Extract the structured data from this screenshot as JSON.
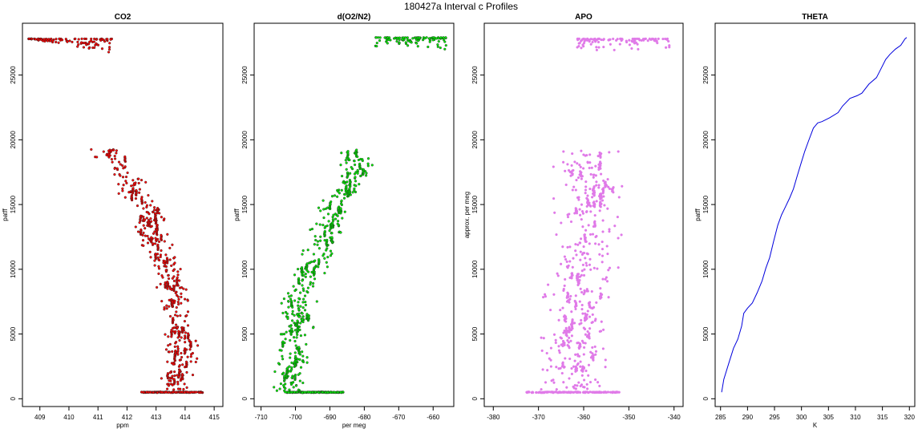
{
  "figure_title": "180427a   Interval c Profiles",
  "chart_data": [
    {
      "type": "scatter",
      "title": "CO2",
      "xlabel": "ppm",
      "ylabel": "patff",
      "xlim": [
        408.4,
        415.3
      ],
      "ylim": [
        -600,
        29000
      ],
      "xticks": [
        409,
        410,
        411,
        412,
        413,
        414,
        415
      ],
      "yticks": [
        0,
        5000,
        10000,
        15000,
        20000,
        25000
      ],
      "color": "#ff0000",
      "profile": [
        [
          409.2,
          27800
        ],
        [
          410.6,
          27700
        ],
        [
          411.0,
          27200
        ],
        [
          411.4,
          26900
        ],
        [
          411.2,
          19300
        ],
        [
          411.7,
          18100
        ],
        [
          412.1,
          16800
        ],
        [
          412.3,
          15400
        ],
        [
          412.9,
          14600
        ],
        [
          412.7,
          12900
        ],
        [
          413.2,
          11100
        ],
        [
          413.4,
          9800
        ],
        [
          413.6,
          8400
        ],
        [
          413.7,
          6600
        ],
        [
          413.8,
          4900
        ],
        [
          413.9,
          3300
        ],
        [
          413.7,
          1700
        ],
        [
          413.8,
          500
        ]
      ],
      "spread": 0.35,
      "bottom_band": [
        412.5,
        414.6,
        500
      ],
      "top_band": [
        408.6,
        411.5,
        27800
      ]
    },
    {
      "type": "scatter",
      "title": "d(O2/N2)",
      "xlabel": "per meg",
      "ylabel": "patff",
      "xlim": [
        -712,
        -654
      ],
      "ylim": [
        -600,
        29000
      ],
      "xticks": [
        -710,
        -700,
        -690,
        -680,
        -670,
        -660
      ],
      "yticks": [
        0,
        5000,
        10000,
        15000,
        20000,
        25000
      ],
      "color": "#00ee00",
      "profile": [
        [
          -665,
          27900
        ],
        [
          -670,
          27300
        ],
        [
          -671,
          26800
        ],
        [
          -683,
          19200
        ],
        [
          -681,
          18100
        ],
        [
          -684,
          16800
        ],
        [
          -686,
          15800
        ],
        [
          -689,
          14600
        ],
        [
          -690,
          12900
        ],
        [
          -692,
          11600
        ],
        [
          -695,
          10200
        ],
        [
          -697,
          8700
        ],
        [
          -700,
          7200
        ],
        [
          -699,
          5600
        ],
        [
          -702,
          4300
        ],
        [
          -699,
          3100
        ],
        [
          -702,
          1800
        ],
        [
          -703,
          500
        ]
      ],
      "spread": 3.2,
      "bottom_band": [
        -703,
        -686,
        500
      ],
      "top_band": [
        -677,
        -656,
        27900
      ]
    },
    {
      "type": "scatter",
      "title": "APO",
      "xlabel": "",
      "ylabel": "approx. per meg",
      "xlim": [
        -382,
        -338
      ],
      "ylim": [
        -600,
        29000
      ],
      "xticks": [
        -380,
        -370,
        -360,
        -350,
        -340
      ],
      "yticks": [
        0,
        5000,
        10000,
        15000,
        20000,
        25000
      ],
      "color": "#e07ae8",
      "profile": [
        [
          -353,
          27800
        ],
        [
          -353,
          27100
        ],
        [
          -360,
          19200
        ],
        [
          -359,
          17500
        ],
        [
          -358,
          15600
        ],
        [
          -359,
          14000
        ],
        [
          -359,
          12300
        ],
        [
          -360,
          10800
        ],
        [
          -360,
          9200
        ],
        [
          -361,
          7600
        ],
        [
          -361,
          6000
        ],
        [
          -362,
          4500
        ],
        [
          -362,
          3000
        ],
        [
          -363,
          1500
        ],
        [
          -362,
          500
        ]
      ],
      "spread": 5.0,
      "bottom_band": [
        -373,
        -352,
        500
      ],
      "top_band": [
        -362,
        -341,
        27800
      ]
    },
    {
      "type": "line",
      "title": "THETA",
      "xlabel": "K",
      "ylabel": "patff",
      "xlim": [
        284,
        321
      ],
      "ylim": [
        -600,
        29000
      ],
      "xticks": [
        285,
        290,
        295,
        300,
        305,
        310,
        315,
        320
      ],
      "yticks": [
        0,
        5000,
        10000,
        15000,
        20000,
        25000
      ],
      "color": "#0000dd",
      "x": [
        285.2,
        285.6,
        286.5,
        287.4,
        288.2,
        288.9,
        289.3,
        290.0,
        290.9,
        291.8,
        292.7,
        293.4,
        294.1,
        294.8,
        295.6,
        296.3,
        297.0,
        297.8,
        298.5,
        299.2,
        300.0,
        300.6,
        301.3,
        302.2,
        303.0,
        303.8,
        305.2,
        306.8,
        307.6,
        309.0,
        310.3,
        311.2,
        312.5,
        313.9,
        314.5,
        315.6,
        316.4,
        317.4,
        318.4,
        319.2,
        319.5
      ],
      "y": [
        500,
        1500,
        2700,
        3900,
        4600,
        5600,
        6600,
        7000,
        7400,
        8200,
        9100,
        10100,
        10900,
        12100,
        13400,
        14200,
        14800,
        15500,
        16200,
        17200,
        18300,
        19100,
        19900,
        20900,
        21300,
        21400,
        21700,
        22100,
        22600,
        23200,
        23400,
        23600,
        24300,
        24800,
        25300,
        26200,
        26600,
        27000,
        27300,
        27800,
        27900
      ]
    }
  ]
}
